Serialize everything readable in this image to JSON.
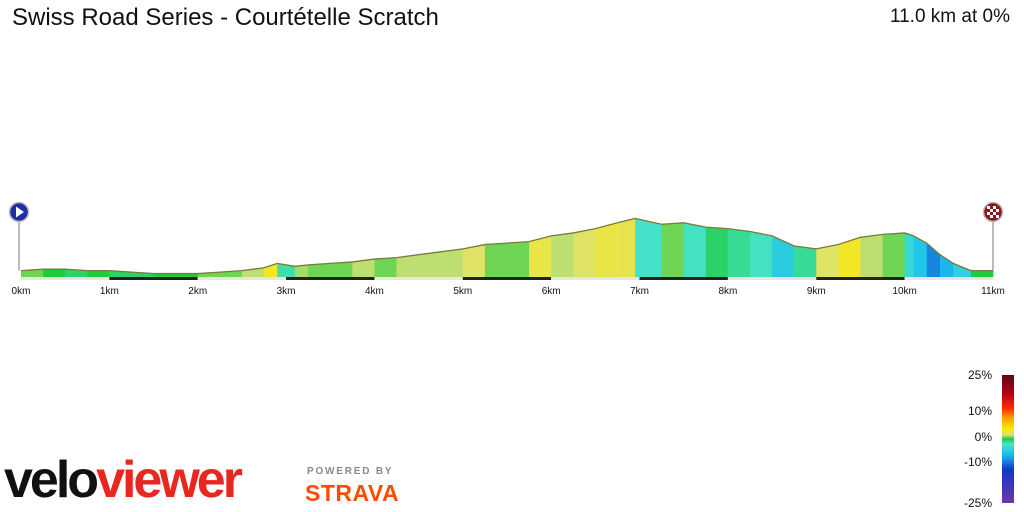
{
  "header": {
    "title": "Swiss Road Series - Courtételle Scratch",
    "summary": "11.0 km at 0%"
  },
  "legend": {
    "labels": [
      "25%",
      "10%",
      "0%",
      "-10%",
      "-25%"
    ],
    "stops": [
      {
        "grade": 25,
        "color": "#5a0a0a"
      },
      {
        "grade": 18,
        "color": "#b3001a"
      },
      {
        "grade": 12,
        "color": "#ff2a00"
      },
      {
        "grade": 8,
        "color": "#ffa500"
      },
      {
        "grade": 4,
        "color": "#ffe800"
      },
      {
        "grade": 1.5,
        "color": "#d8e27a"
      },
      {
        "grade": 0,
        "color": "#1fcc3a"
      },
      {
        "grade": -2,
        "color": "#45e3c8"
      },
      {
        "grade": -6,
        "color": "#19c0ef"
      },
      {
        "grade": -12,
        "color": "#1436c8"
      },
      {
        "grade": -25,
        "color": "#6b3aa8"
      }
    ]
  },
  "branding": {
    "logo_part1": "velo",
    "logo_part2": "viewer",
    "powered_by": "POWERED BY",
    "strava": "STRAVA"
  },
  "chart_data": {
    "type": "area",
    "title": "Swiss Road Series - Courtételle Scratch",
    "xlabel": "",
    "ylabel": "",
    "x_ticks": [
      "0km",
      "1km",
      "2km",
      "3km",
      "4km",
      "5km",
      "6km",
      "7km",
      "8km",
      "9km",
      "10km",
      "11km"
    ],
    "xlim": [
      0,
      11
    ],
    "distance_km": [
      0,
      0.25,
      0.5,
      0.75,
      1.0,
      1.25,
      1.5,
      1.75,
      2.0,
      2.25,
      2.5,
      2.75,
      2.9,
      3.1,
      3.25,
      3.5,
      3.75,
      4.0,
      4.25,
      4.5,
      4.75,
      5.0,
      5.25,
      5.5,
      5.75,
      6.0,
      6.25,
      6.5,
      6.75,
      6.95,
      7.1,
      7.25,
      7.5,
      7.75,
      8.0,
      8.25,
      8.5,
      8.75,
      9.0,
      9.25,
      9.5,
      9.75,
      10.0,
      10.1,
      10.25,
      10.4,
      10.55,
      10.75,
      11.0
    ],
    "elevation_rel": [
      3,
      4,
      4,
      3,
      3,
      2,
      1,
      1,
      1,
      2,
      3,
      5,
      8,
      6,
      7,
      8,
      9,
      11,
      12,
      14,
      16,
      18,
      21,
      22,
      23,
      27,
      29,
      32,
      36,
      39,
      37,
      35,
      36,
      33,
      32,
      30,
      27,
      20,
      18,
      21,
      26,
      28,
      29,
      27,
      22,
      14,
      8,
      3,
      3
    ],
    "start_marker": "play",
    "finish_marker": "checkered-flag"
  }
}
